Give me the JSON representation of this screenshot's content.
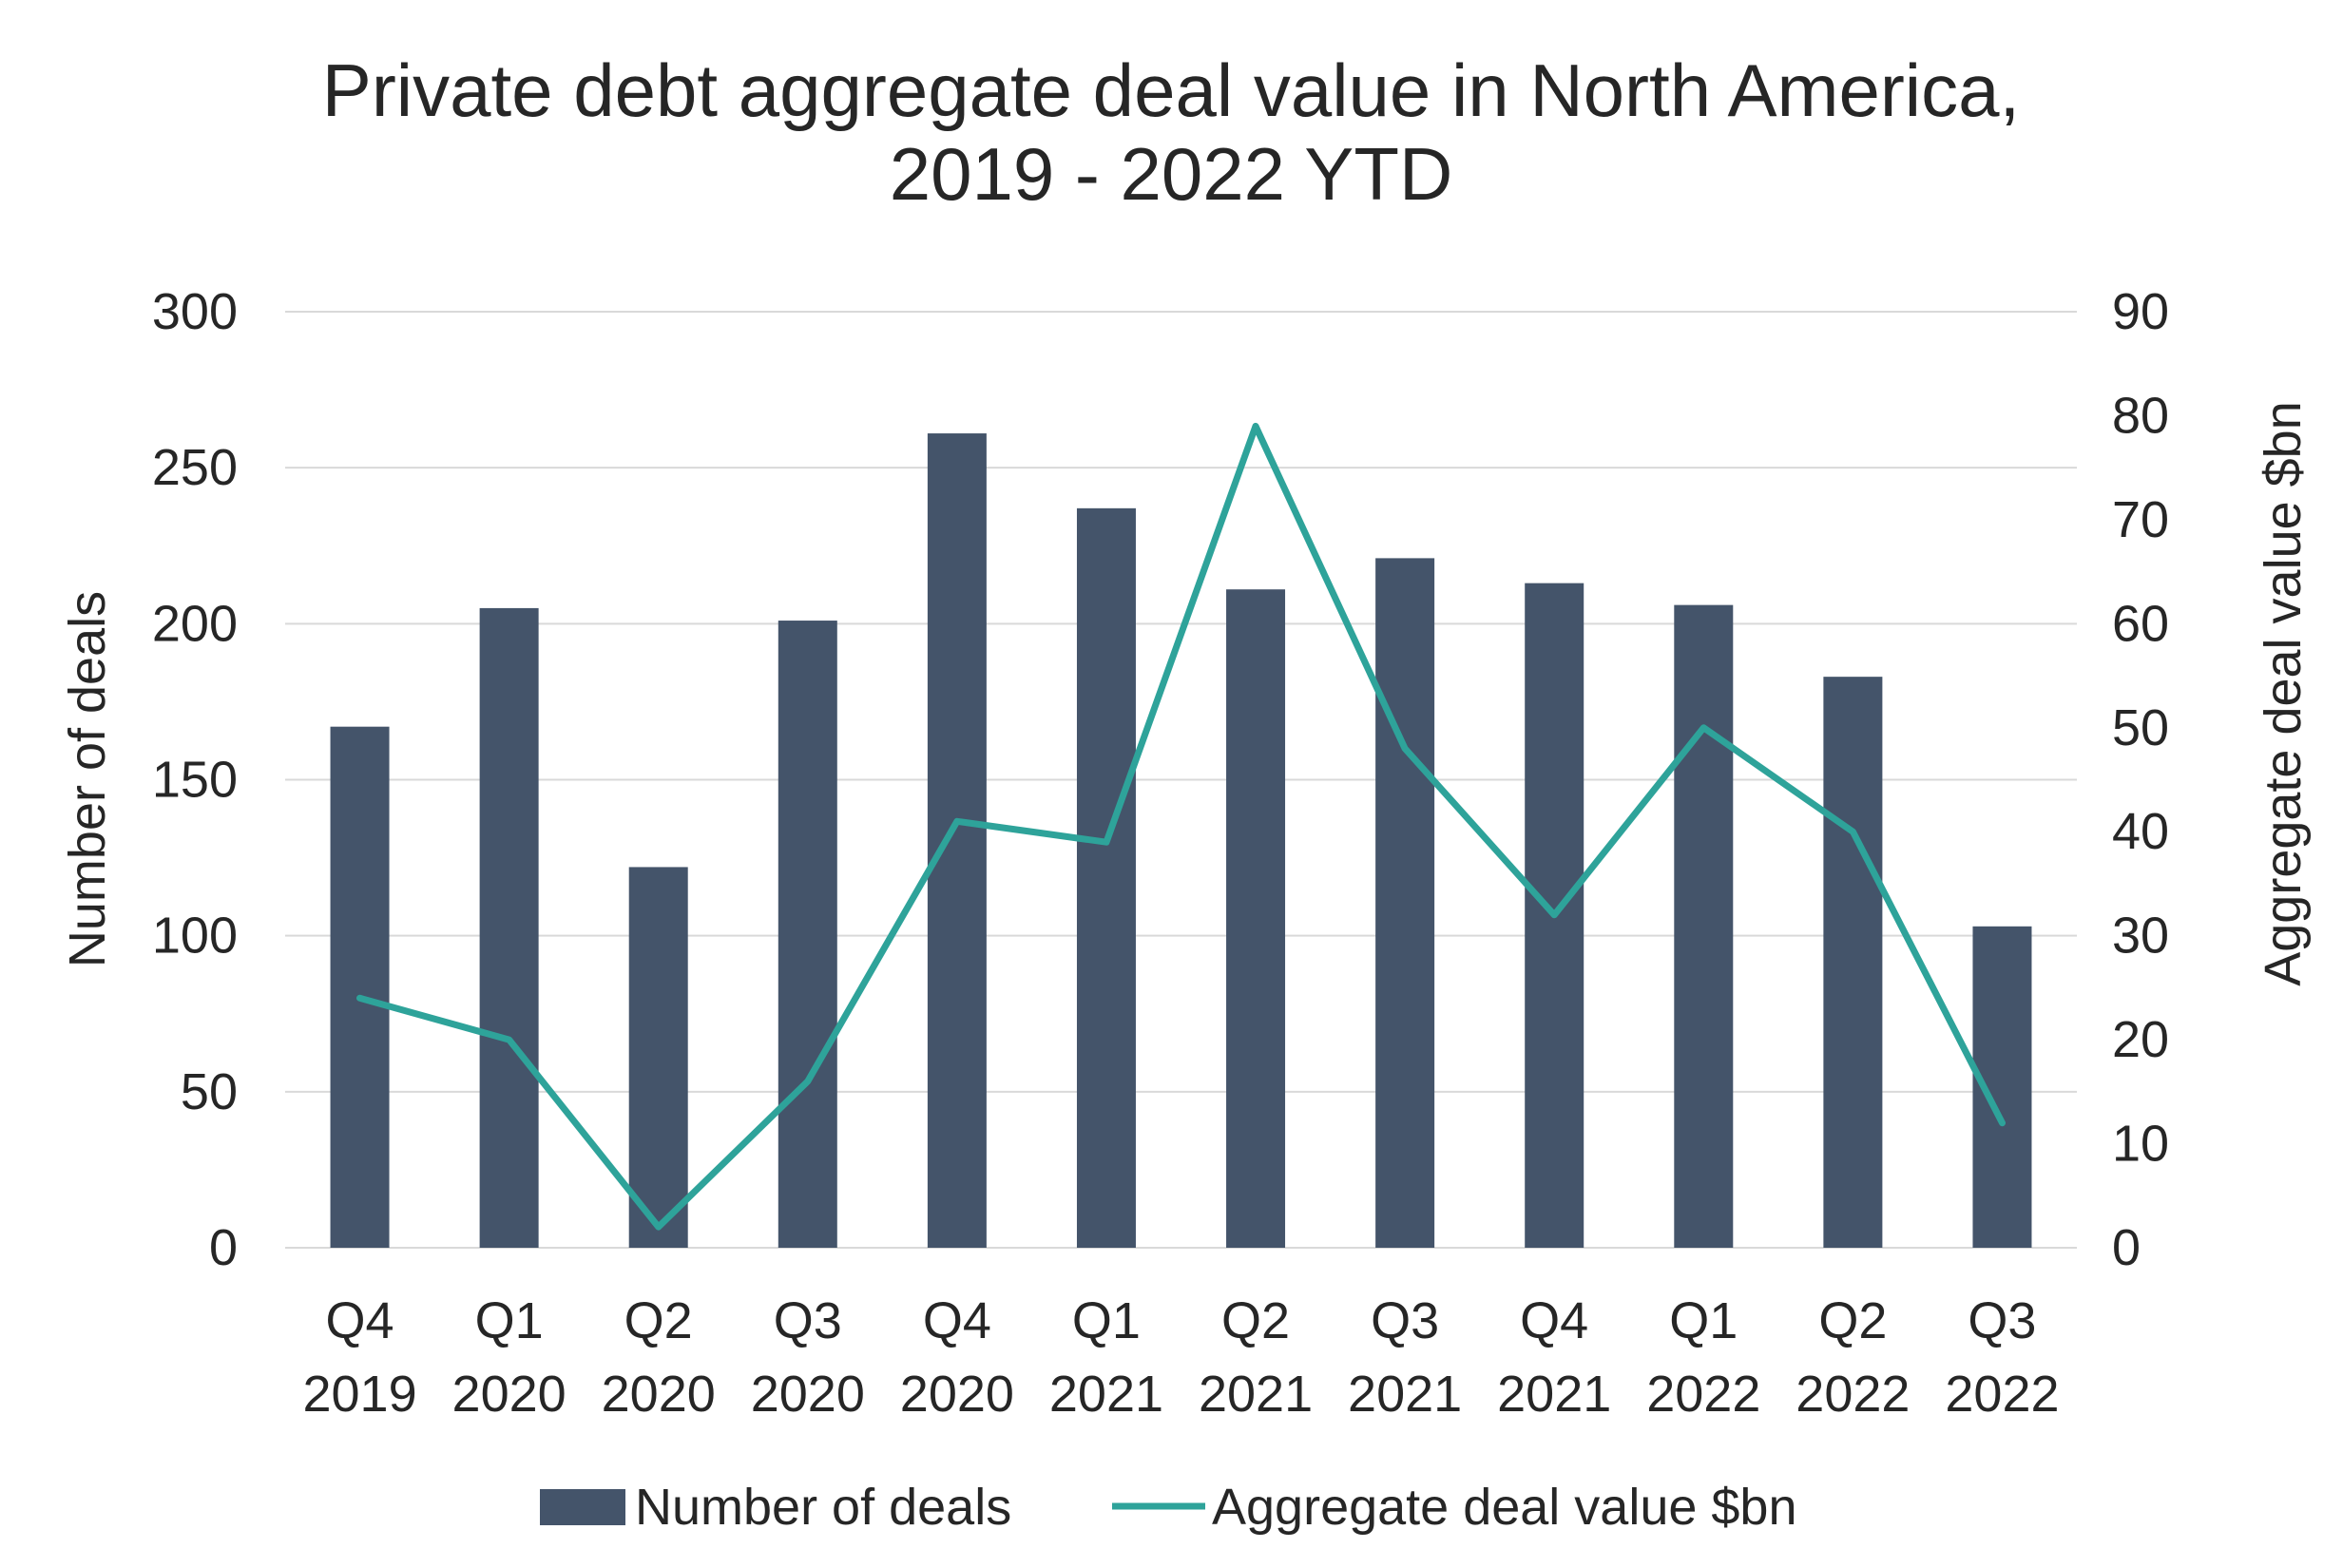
{
  "chart_data": {
    "type": "bar",
    "title": [
      "Private debt aggregate deal value in North America,",
      "2019 - 2022 YTD"
    ],
    "categories": [
      [
        "Q4",
        "2019"
      ],
      [
        "Q1",
        "2020"
      ],
      [
        "Q2",
        "2020"
      ],
      [
        "Q3",
        "2020"
      ],
      [
        "Q4",
        "2020"
      ],
      [
        "Q1",
        "2021"
      ],
      [
        "Q2",
        "2021"
      ],
      [
        "Q3",
        "2021"
      ],
      [
        "Q4",
        "2021"
      ],
      [
        "Q1",
        "2022"
      ],
      [
        "Q2",
        "2022"
      ],
      [
        "Q3",
        "2022"
      ]
    ],
    "series": [
      {
        "name": "Number of deals",
        "type": "bar",
        "axis": "left",
        "color": "#44546a",
        "values": [
          167,
          205,
          122,
          201,
          261,
          237,
          211,
          221,
          213,
          206,
          183,
          103
        ]
      },
      {
        "name": "Aggregate deal value $bn",
        "type": "line",
        "axis": "right",
        "color": "#2ea39a",
        "values": [
          24,
          20,
          2,
          16,
          41,
          39,
          79,
          48,
          32,
          50,
          40,
          12
        ]
      }
    ],
    "ylabel_left": "Number of deals",
    "ylabel_right": "Aggregate deal value $bn",
    "ylim_left": [
      0,
      300
    ],
    "yticks_left": [
      "0",
      "50",
      "100",
      "150",
      "200",
      "250",
      "300"
    ],
    "ylim_right": [
      0,
      90
    ],
    "yticks_right": [
      "0",
      "10",
      "20",
      "30",
      "40",
      "50",
      "60",
      "70",
      "80",
      "90"
    ],
    "grid": true,
    "gridline_color": "#d9d9d9",
    "legend_position": "bottom"
  }
}
